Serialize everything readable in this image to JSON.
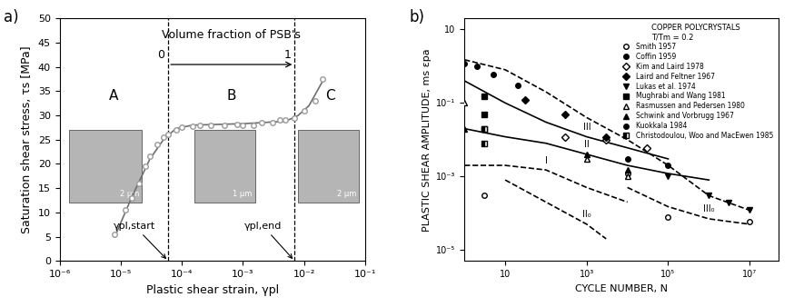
{
  "chart_data": [
    {
      "type": "scatter",
      "panel_label": "a)",
      "x_label": "Plastic shear strain, γpl",
      "y_label": "Saturation shear stress, τs [MPa]",
      "log": "x",
      "xlim": [
        1e-06,
        0.1
      ],
      "xticks": [
        {
          "value": 1e-06,
          "label": "10⁻⁶"
        },
        {
          "value": 1e-05,
          "label": "10⁻⁵"
        },
        {
          "value": 0.0001,
          "label": "10⁻⁴"
        },
        {
          "value": 0.001,
          "label": "10⁻³"
        },
        {
          "value": 0.01,
          "label": "10⁻²"
        },
        {
          "value": 0.1,
          "label": "10⁻¹"
        }
      ],
      "ylim": [
        0,
        50
      ],
      "yticks": [
        0,
        5,
        10,
        15,
        20,
        25,
        30,
        35,
        40,
        45,
        50
      ],
      "series": [
        {
          "type": "scatter",
          "marker": "open_circle",
          "color": "#9a9a9a",
          "x": [
            8e-06,
            1.2e-05,
            1.5e-05,
            2e-05,
            2.5e-05,
            3e-05,
            4e-05,
            5e-05,
            6e-05,
            8e-05,
            0.0001,
            0.00015,
            0.0002,
            0.0003,
            0.0005,
            0.0008,
            0.001,
            0.0015,
            0.002,
            0.003,
            0.004,
            0.005,
            0.007,
            0.01,
            0.015,
            0.02
          ],
          "values": [
            5.5,
            10.5,
            13,
            16,
            19.5,
            21.5,
            24,
            25.5,
            26,
            27,
            27.5,
            27.8,
            28,
            28,
            28,
            28.2,
            28,
            28,
            28.5,
            28.5,
            29,
            29,
            29.5,
            31,
            33,
            37.5
          ]
        },
        {
          "type": "line",
          "line_style": "solid",
          "color": "#6e6e6e",
          "x": [
            8e-06,
            1.5e-05,
            3e-05,
            5e-05,
            8e-05,
            0.00015,
            0.001,
            0.005,
            0.008,
            0.012,
            0.02
          ],
          "values": [
            5,
            13,
            21,
            25,
            27.3,
            28,
            28.3,
            28.8,
            30,
            32,
            37
          ]
        }
      ],
      "vlines": [
        {
          "x": 6e-05,
          "label": "γpl,start"
        },
        {
          "x": 0.007,
          "label": "γpl,end"
        }
      ],
      "regions": [
        "A",
        "B",
        "C"
      ],
      "fraction_label": "Volume fraction of PSB's",
      "fraction_ends": [
        0,
        1
      ],
      "insets": [
        {
          "scale": "2 μm"
        },
        {
          "scale": "1 μm"
        },
        {
          "scale": "2 μm"
        }
      ]
    },
    {
      "type": "scatter",
      "panel_label": "b)",
      "x_label": "CYCLE NUMBER, N",
      "y_label": "PLASTIC SHEAR AMPLITUDE, ms εpa",
      "log": true,
      "xlim": [
        1,
        50000000.0
      ],
      "xticks": [
        10,
        {
          "value": 1000,
          "label": "10³"
        },
        {
          "value": 100000,
          "label": "10⁵"
        },
        {
          "value": 10000000,
          "label": "10⁷"
        }
      ],
      "ylim": [
        5e-06,
        20
      ],
      "yticks": [
        {
          "value": 1e-05,
          "label": "10⁻⁵"
        },
        {
          "value": 0.001,
          "label": "10⁻³"
        },
        {
          "value": 0.1,
          "label": "10⁻¹"
        },
        10
      ],
      "color": "#000000",
      "legend": "upper right",
      "legend_title": [
        "COPPER POLYCRYSTALS",
        "T/Tm = 0.2"
      ],
      "series": [
        {
          "name": "Smith 1957",
          "type": "scatter",
          "marker": "open_circle",
          "x": [
            3,
            10000,
            100000,
            10000000
          ],
          "values": [
            0.0003,
            0.0012,
            8e-05,
            6e-05
          ]
        },
        {
          "name": "Coffin 1959",
          "type": "scatter",
          "marker": "filled_circle",
          "x": [
            1,
            2,
            5,
            20
          ],
          "values": [
            1.2,
            1.0,
            0.6,
            0.3
          ]
        },
        {
          "name": "Kim and Laird 1978",
          "type": "scatter",
          "marker": "open_diamond",
          "x": [
            300,
            3000,
            30000
          ],
          "values": [
            0.012,
            0.01,
            0.006
          ]
        },
        {
          "name": "Laird and Feltner 1967",
          "type": "scatter",
          "marker": "filled_diamond",
          "x": [
            30,
            300,
            3000
          ],
          "values": [
            0.12,
            0.05,
            0.012
          ]
        },
        {
          "name": "Lukas et al. 1974",
          "type": "scatter",
          "marker": "filled_down_triangle",
          "x": [
            100000,
            1000000,
            3000000,
            10000000
          ],
          "values": [
            0.001,
            0.0003,
            0.0002,
            0.00012
          ]
        },
        {
          "name": "Mughrabi and Wang 1981",
          "type": "scatter",
          "marker": "filled_square",
          "x": [
            3,
            3,
            3
          ],
          "values": [
            0.15,
            0.05,
            0.02
          ]
        },
        {
          "name": "Rasmussen and Pedersen 1980",
          "type": "scatter",
          "marker": "open_triangle",
          "x": [
            1,
            1000,
            10000
          ],
          "values": [
            0.1,
            0.003,
            0.001
          ]
        },
        {
          "name": "Schwink and Vorbrugg 1967",
          "type": "scatter",
          "marker": "filled_triangle",
          "x": [
            1,
            1000,
            10000
          ],
          "values": [
            0.02,
            0.004,
            0.0015
          ]
        },
        {
          "name": "Kuokkala 1984",
          "type": "scatter",
          "marker": "plus",
          "x": [
            10000,
            100000
          ],
          "values": [
            0.003,
            0.002
          ]
        },
        {
          "name": "Christodoulou, Woo and MacEwen 1985",
          "type": "scatter",
          "marker": "half_square",
          "x": [
            3,
            3
          ],
          "values": [
            0.02,
            0.008
          ]
        },
        {
          "type": "line",
          "line_style": "dashed",
          "x": [
            1,
            10,
            100,
            1000,
            10000,
            100000,
            1000000,
            10000000
          ],
          "values": [
            1.5,
            0.8,
            0.2,
            0.04,
            0.01,
            0.002,
            0.0003,
            0.00012
          ]
        },
        {
          "type": "line",
          "line_style": "solid",
          "label": "III",
          "x": [
            1,
            10,
            100,
            1000,
            10000,
            100000
          ],
          "values": [
            0.4,
            0.1,
            0.03,
            0.012,
            0.006,
            0.003
          ]
        },
        {
          "type": "line",
          "line_style": "solid",
          "label": "II",
          "x": [
            1,
            10,
            100,
            1000,
            10000,
            100000,
            1000000
          ],
          "values": [
            0.02,
            0.012,
            0.008,
            0.004,
            0.002,
            0.0012,
            0.0008
          ]
        },
        {
          "type": "line",
          "line_style": "dashed",
          "label": "I",
          "x": [
            1,
            10,
            100,
            1000,
            10000
          ],
          "values": [
            0.002,
            0.002,
            0.0015,
            0.0005,
            0.0002
          ]
        },
        {
          "type": "line",
          "line_style": "dashed",
          "label": "II₀",
          "x": [
            10,
            100,
            1000,
            3000
          ],
          "values": [
            0.0008,
            0.0002,
            5e-05,
            2e-05
          ]
        },
        {
          "type": "line",
          "line_style": "dashed",
          "label": "III₀",
          "x": [
            10000,
            100000,
            1000000,
            10000000
          ],
          "values": [
            0.0005,
            0.00015,
            7e-05,
            5e-05
          ]
        }
      ]
    }
  ]
}
